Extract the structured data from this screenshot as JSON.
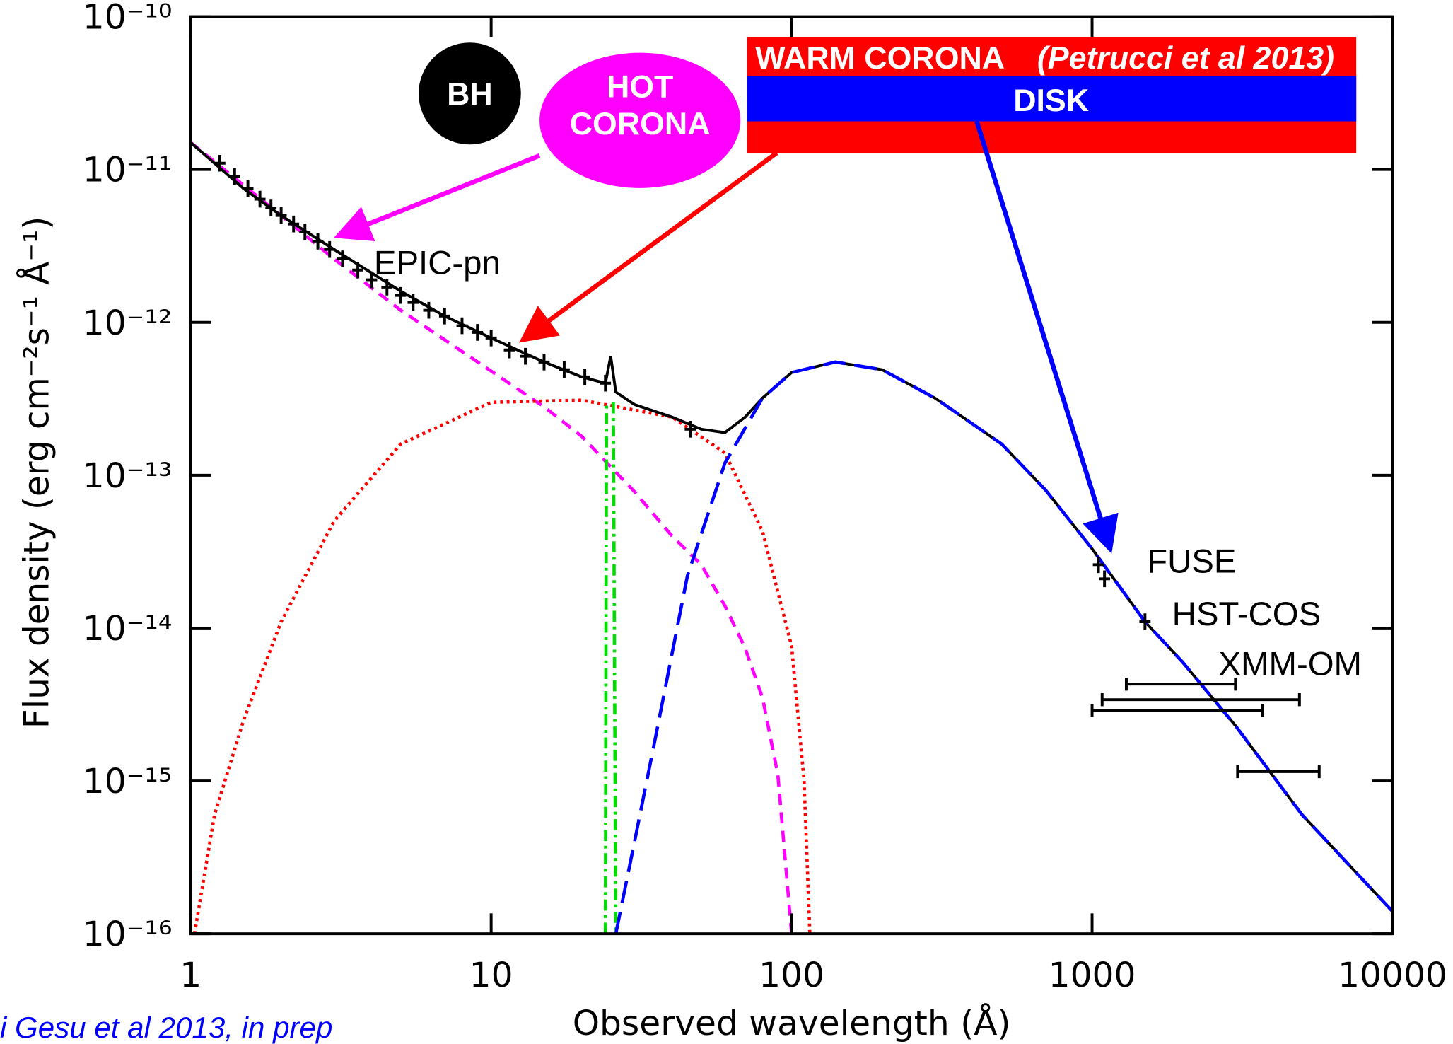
{
  "chart_data": {
    "type": "line",
    "xlabel": "Observed wavelength (Å)",
    "ylabel": "Flux density (erg cm⁻²s⁻¹ Å⁻¹)",
    "log_x": true,
    "log_y": true,
    "xlim": [
      1,
      10000
    ],
    "xticks": [
      1,
      10,
      100,
      1000,
      10000
    ],
    "ylim": [
      1e-16,
      1e-10
    ],
    "yticks": [
      {
        "value": 1e-16,
        "label": "10⁻¹⁶"
      },
      {
        "value": 1e-15,
        "label": "10⁻¹⁵"
      },
      {
        "value": 1e-14,
        "label": "10⁻¹⁴"
      },
      {
        "value": 1e-13,
        "label": "10⁻¹³"
      },
      {
        "value": 1e-12,
        "label": "10⁻¹²"
      },
      {
        "value": 1e-11,
        "label": "10⁻¹¹"
      },
      {
        "value": 1e-10,
        "label": "10⁻¹⁰"
      }
    ],
    "series": [
      {
        "color": "#ff00ff",
        "dash": "dashed",
        "x": [
          1,
          2,
          3,
          5,
          10,
          15,
          20,
          30,
          40,
          50,
          60,
          70,
          80,
          90,
          100
        ],
        "values": [
          1.5e-11,
          5e-12,
          2.6e-12,
          1.2e-12,
          4.8e-13,
          2.8e-13,
          1.8e-13,
          7.8e-14,
          4e-14,
          2.6e-14,
          1.4e-14,
          7.4e-15,
          3.5e-15,
          1.1e-15,
          1e-16
        ]
      },
      {
        "color": "#ff0000",
        "dash": "dotted",
        "x": [
          1.03,
          1.2,
          1.5,
          2,
          3,
          5,
          10,
          20,
          40,
          60,
          80,
          100,
          110,
          115
        ],
        "values": [
          1e-16,
          6e-16,
          2.5e-15,
          1.1e-14,
          5e-14,
          1.6e-13,
          3e-13,
          3.1e-13,
          2.4e-13,
          1.4e-13,
          4.3e-14,
          7.6e-15,
          1e-15,
          1e-16
        ]
      },
      {
        "color": "#00dd00",
        "dash": "dashdot",
        "x": [
          24,
          24.2,
          25,
          25.5,
          26
        ],
        "values": [
          1e-16,
          3e-13,
          null,
          3e-13,
          1e-16
        ]
      },
      {
        "color": "#000000",
        "dash": "solid",
        "x": [
          1,
          1.5,
          2,
          3,
          5,
          7,
          10,
          15,
          20,
          24,
          25,
          26,
          30,
          40,
          50,
          60,
          70,
          80,
          100,
          140,
          200,
          300,
          500,
          700,
          1000,
          1500,
          2000,
          3000,
          5000,
          10000
        ],
        "values": [
          1.5e-11,
          7.5e-12,
          5e-12,
          3e-12,
          1.6e-12,
          1.1e-12,
          7.9e-13,
          5.5e-13,
          4.4e-13,
          4e-13,
          6e-13,
          3.5e-13,
          2.9e-13,
          2.4e-13,
          2e-13,
          1.9e-13,
          2.4e-13,
          3.2e-13,
          4.7e-13,
          5.5e-13,
          4.9e-13,
          3.2e-13,
          1.6e-13,
          8e-14,
          3.3e-14,
          1.1e-14,
          6e-15,
          2.3e-15,
          6e-16,
          1.4e-16
        ]
      },
      {
        "color": "#0000ff",
        "dash": "longdash",
        "x": [
          26,
          30,
          35,
          45,
          60,
          80,
          100,
          140,
          200,
          300,
          500,
          700,
          1000,
          1500,
          2000,
          3000,
          5000,
          10000
        ],
        "values": [
          1e-16,
          4e-16,
          1.8e-15,
          2.2e-14,
          1.2e-13,
          3.2e-13,
          4.7e-13,
          5.5e-13,
          4.9e-13,
          3.2e-13,
          1.6e-13,
          8e-14,
          3.3e-14,
          1.1e-14,
          6e-15,
          2.3e-15,
          6e-16,
          1.4e-16
        ]
      }
    ],
    "points": [
      {
        "color": "#000000",
        "x": [
          1.25,
          1.4,
          1.55,
          1.7,
          1.85,
          2.0,
          2.2,
          2.4,
          2.65,
          2.9,
          3.2,
          3.6,
          4.0,
          4.5,
          5,
          5.5,
          6.2,
          7,
          8,
          9,
          10,
          11.5,
          13,
          15,
          17.5,
          20.5,
          24,
          46
        ],
        "values": [
          1.1e-11,
          9e-12,
          7.5e-12,
          6.4e-12,
          5.6e-12,
          5e-12,
          4.4e-12,
          3.9e-12,
          3.4e-12,
          3e-12,
          2.6e-12,
          2.2e-12,
          1.9e-12,
          1.7e-12,
          1.5e-12,
          1.35e-12,
          1.2e-12,
          1.1e-12,
          9.5e-13,
          8.6e-13,
          7.9e-13,
          6.6e-13,
          6e-13,
          5.5e-13,
          4.9e-13,
          4.4e-13,
          4e-13,
          2e-13
        ]
      },
      {
        "color": "#000000",
        "x": [
          1050,
          1100
        ],
        "values": [
          2.6e-14,
          2.1e-14
        ]
      },
      {
        "color": "#000000",
        "x": [
          1500
        ],
        "values": [
          1.1e-14
        ]
      },
      {
        "color": "#000000",
        "xlow": [
          1300,
          1080,
          1000,
          3050
        ],
        "xhigh": [
          3000,
          4900,
          3700,
          5700
        ],
        "values": [
          4.3e-15,
          3.4e-15,
          2.9e-15,
          1.15e-15
        ]
      }
    ],
    "annotations": [
      "BH",
      "HOT",
      "CORONA",
      "WARM CORONA",
      "(Petrucci et al 2013)",
      "DISK",
      "EPIC-pn",
      "FUSE",
      "HST-COS",
      "XMM-OM",
      "i Gesu et  al 2013, in prep"
    ]
  }
}
